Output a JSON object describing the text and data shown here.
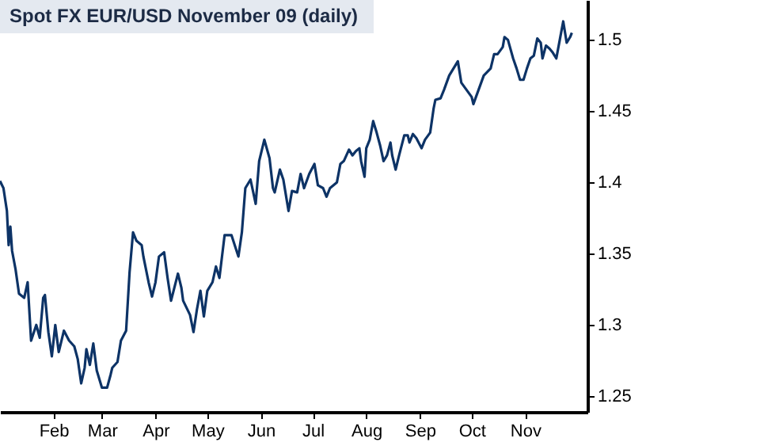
{
  "chart_data": {
    "type": "line",
    "title": "Spot FX EUR/USD November 09 (daily)",
    "color": "#0d3366",
    "x": [
      "--01-01",
      "--01-03",
      "--01-05",
      "--01-06",
      "--01-07",
      "--01-08",
      "--01-10",
      "--01-12",
      "--01-15",
      "--01-17",
      "--01-19",
      "--01-22",
      "--01-24",
      "--01-26",
      "--01-27",
      "--01-29",
      "--01-31",
      "--02-02",
      "--02-04",
      "--02-07",
      "--02-10",
      "--02-13",
      "--02-15",
      "--02-17",
      "--02-19",
      "--02-20",
      "--02-22",
      "--02-24",
      "--02-26",
      "--03-01",
      "--03-04",
      "--03-06",
      "--03-07",
      "--03-10",
      "--03-12",
      "--03-15",
      "--03-17",
      "--03-19",
      "--03-21",
      "--03-24",
      "--03-25",
      "--03-28",
      "--03-30",
      "--04-01",
      "--04-03",
      "--04-06",
      "--04-08",
      "--04-10",
      "--04-14",
      "--04-16",
      "--04-17",
      "--04-21",
      "--04-23",
      "--04-25",
      "--04-27",
      "--04-29",
      "--05-01",
      "--05-04",
      "--05-06",
      "--05-08",
      "--05-09",
      "--05-11",
      "--05-15",
      "--05-19",
      "--05-21",
      "--05-23",
      "--05-26",
      "--05-29",
      "--05-31",
      "--06-03",
      "--06-06",
      "--06-08",
      "--06-09",
      "--06-12",
      "--06-14",
      "--06-17",
      "--06-19",
      "--06-22",
      "--06-24",
      "--06-26",
      "--06-29",
      "--07-02",
      "--07-04",
      "--07-07",
      "--07-09",
      "--07-11",
      "--07-15",
      "--07-17",
      "--07-19",
      "--07-22",
      "--07-24",
      "--07-26",
      "--07-28",
      "--07-29",
      "--07-31",
      "--08-01",
      "--08-03",
      "--08-05",
      "--08-07",
      "--08-09",
      "--08-11",
      "--08-13",
      "--08-15",
      "--08-16",
      "--08-18",
      "--08-20",
      "--08-23",
      "--08-25",
      "--08-26",
      "--08-28",
      "--08-30",
      "--09-02",
      "--09-04",
      "--09-07",
      "--09-09",
      "--09-10",
      "--09-13",
      "--09-15",
      "--09-18",
      "--09-23",
      "--09-25",
      "--09-28",
      "--10-01",
      "--10-02",
      "--10-05",
      "--10-08",
      "--10-12",
      "--10-14",
      "--10-16",
      "--10-19",
      "--10-20",
      "--10-22",
      "--10-25",
      "--10-27",
      "--10-29",
      "--10-31",
      "--11-02",
      "--11-04",
      "--11-06",
      "--11-08",
      "--11-10",
      "--11-11",
      "--11-13",
      "--11-15",
      "--11-17",
      "--11-19",
      "--11-21",
      "--11-23",
      "--11-25",
      "--11-27",
      "--11-28"
    ],
    "values": [
      1.401,
      1.396,
      1.38,
      1.356,
      1.369,
      1.352,
      1.339,
      1.322,
      1.319,
      1.33,
      1.289,
      1.3,
      1.291,
      1.319,
      1.321,
      1.295,
      1.278,
      1.3,
      1.281,
      1.296,
      1.289,
      1.285,
      1.276,
      1.259,
      1.27,
      1.283,
      1.272,
      1.287,
      1.268,
      1.256,
      1.256,
      1.265,
      1.27,
      1.274,
      1.289,
      1.296,
      1.337,
      1.365,
      1.359,
      1.356,
      1.348,
      1.33,
      1.32,
      1.33,
      1.348,
      1.351,
      1.333,
      1.317,
      1.336,
      1.326,
      1.317,
      1.307,
      1.295,
      1.311,
      1.324,
      1.306,
      1.324,
      1.33,
      1.341,
      1.333,
      1.343,
      1.363,
      1.363,
      1.348,
      1.365,
      1.396,
      1.402,
      1.385,
      1.415,
      1.43,
      1.417,
      1.396,
      1.393,
      1.409,
      1.402,
      1.38,
      1.394,
      1.393,
      1.406,
      1.396,
      1.406,
      1.413,
      1.398,
      1.396,
      1.39,
      1.396,
      1.4,
      1.413,
      1.415,
      1.423,
      1.419,
      1.422,
      1.424,
      1.415,
      1.404,
      1.424,
      1.43,
      1.443,
      1.435,
      1.426,
      1.415,
      1.419,
      1.428,
      1.419,
      1.409,
      1.419,
      1.433,
      1.433,
      1.428,
      1.434,
      1.431,
      1.424,
      1.43,
      1.435,
      1.452,
      1.458,
      1.459,
      1.465,
      1.475,
      1.485,
      1.47,
      1.465,
      1.46,
      1.455,
      1.465,
      1.475,
      1.48,
      1.49,
      1.49,
      1.495,
      1.502,
      1.5,
      1.487,
      1.48,
      1.472,
      1.472,
      1.48,
      1.487,
      1.489,
      1.501,
      1.498,
      1.487,
      1.496,
      1.494,
      1.491,
      1.487,
      1.5,
      1.513,
      1.498,
      1.502,
      1.505
    ],
    "xlim": [
      "--01-01",
      "--12-07"
    ],
    "ylim": [
      1.239,
      1.528
    ],
    "xticks": [
      {
        "value": "--02-01",
        "label": "Feb"
      },
      {
        "value": "--03-01",
        "label": "Mar"
      },
      {
        "value": "--04-01",
        "label": "Apr"
      },
      {
        "value": "--05-01",
        "label": "May"
      },
      {
        "value": "--06-01",
        "label": "Jun"
      },
      {
        "value": "--07-01",
        "label": "Jul"
      },
      {
        "value": "--08-01",
        "label": "Aug"
      },
      {
        "value": "--09-01",
        "label": "Sep"
      },
      {
        "value": "--10-01",
        "label": "Oct"
      },
      {
        "value": "--11-01",
        "label": "Nov"
      }
    ],
    "yticks": [
      1.25,
      1.3,
      1.35,
      1.4,
      1.45,
      1.5
    ]
  }
}
